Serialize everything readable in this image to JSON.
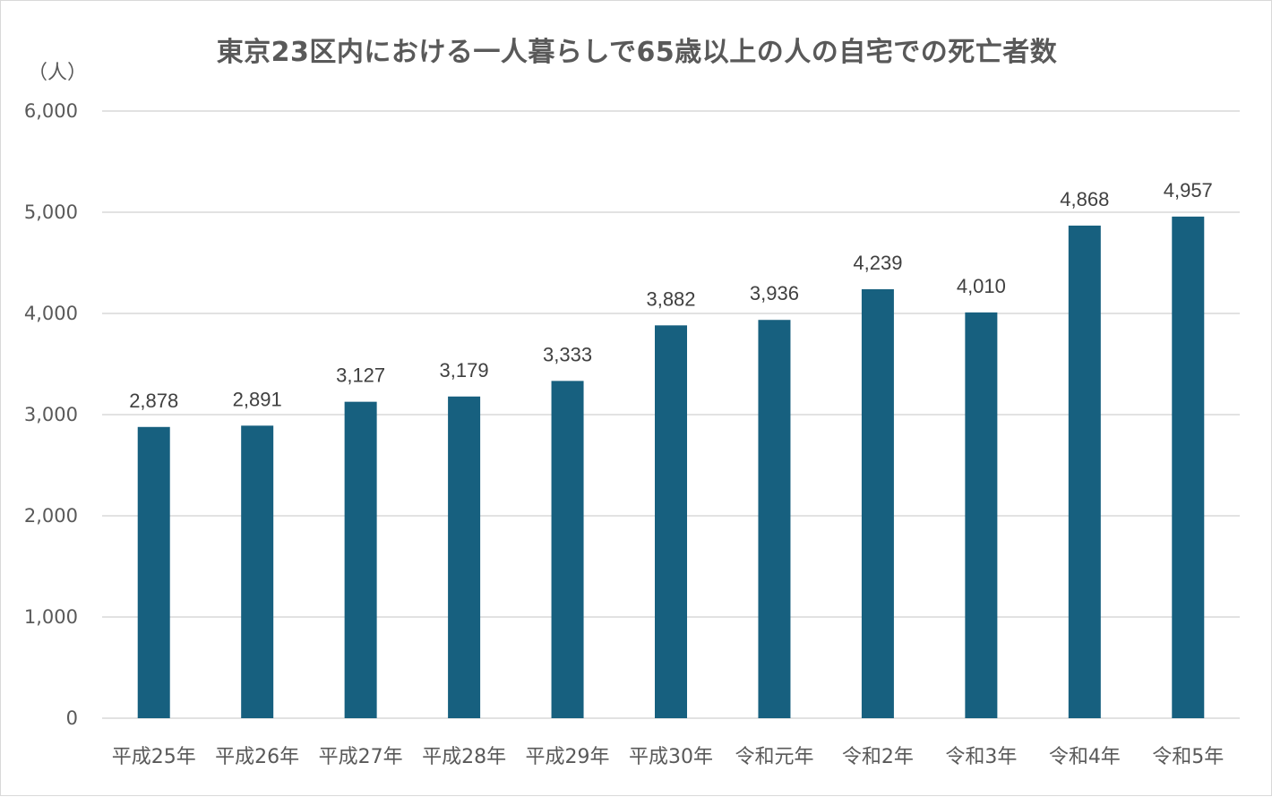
{
  "chart_data": {
    "type": "bar",
    "title": "東京23区内における一人暮らしで65歳以上の人の自宅での死亡者数",
    "ylabel": "（人）",
    "xlabel": "",
    "ylim": [
      0,
      6000
    ],
    "yticks": [
      0,
      1000,
      2000,
      3000,
      4000,
      5000,
      6000
    ],
    "ytick_labels": [
      "0",
      "1,000",
      "2,000",
      "3,000",
      "4,000",
      "5,000",
      "6,000"
    ],
    "grid": true,
    "legend": "none",
    "bar_color": "#17607f",
    "categories": [
      "平成25年",
      "平成26年",
      "平成27年",
      "平成28年",
      "平成29年",
      "平成30年",
      "令和元年",
      "令和2年",
      "令和3年",
      "令和4年",
      "令和5年"
    ],
    "values": [
      2878,
      2891,
      3127,
      3179,
      3333,
      3882,
      3936,
      4239,
      4010,
      4868,
      4957
    ],
    "value_labels": [
      "2,878",
      "2,891",
      "3,127",
      "3,179",
      "3,333",
      "3,882",
      "3,936",
      "4,239",
      "4,010",
      "4,868",
      "4,957"
    ]
  }
}
